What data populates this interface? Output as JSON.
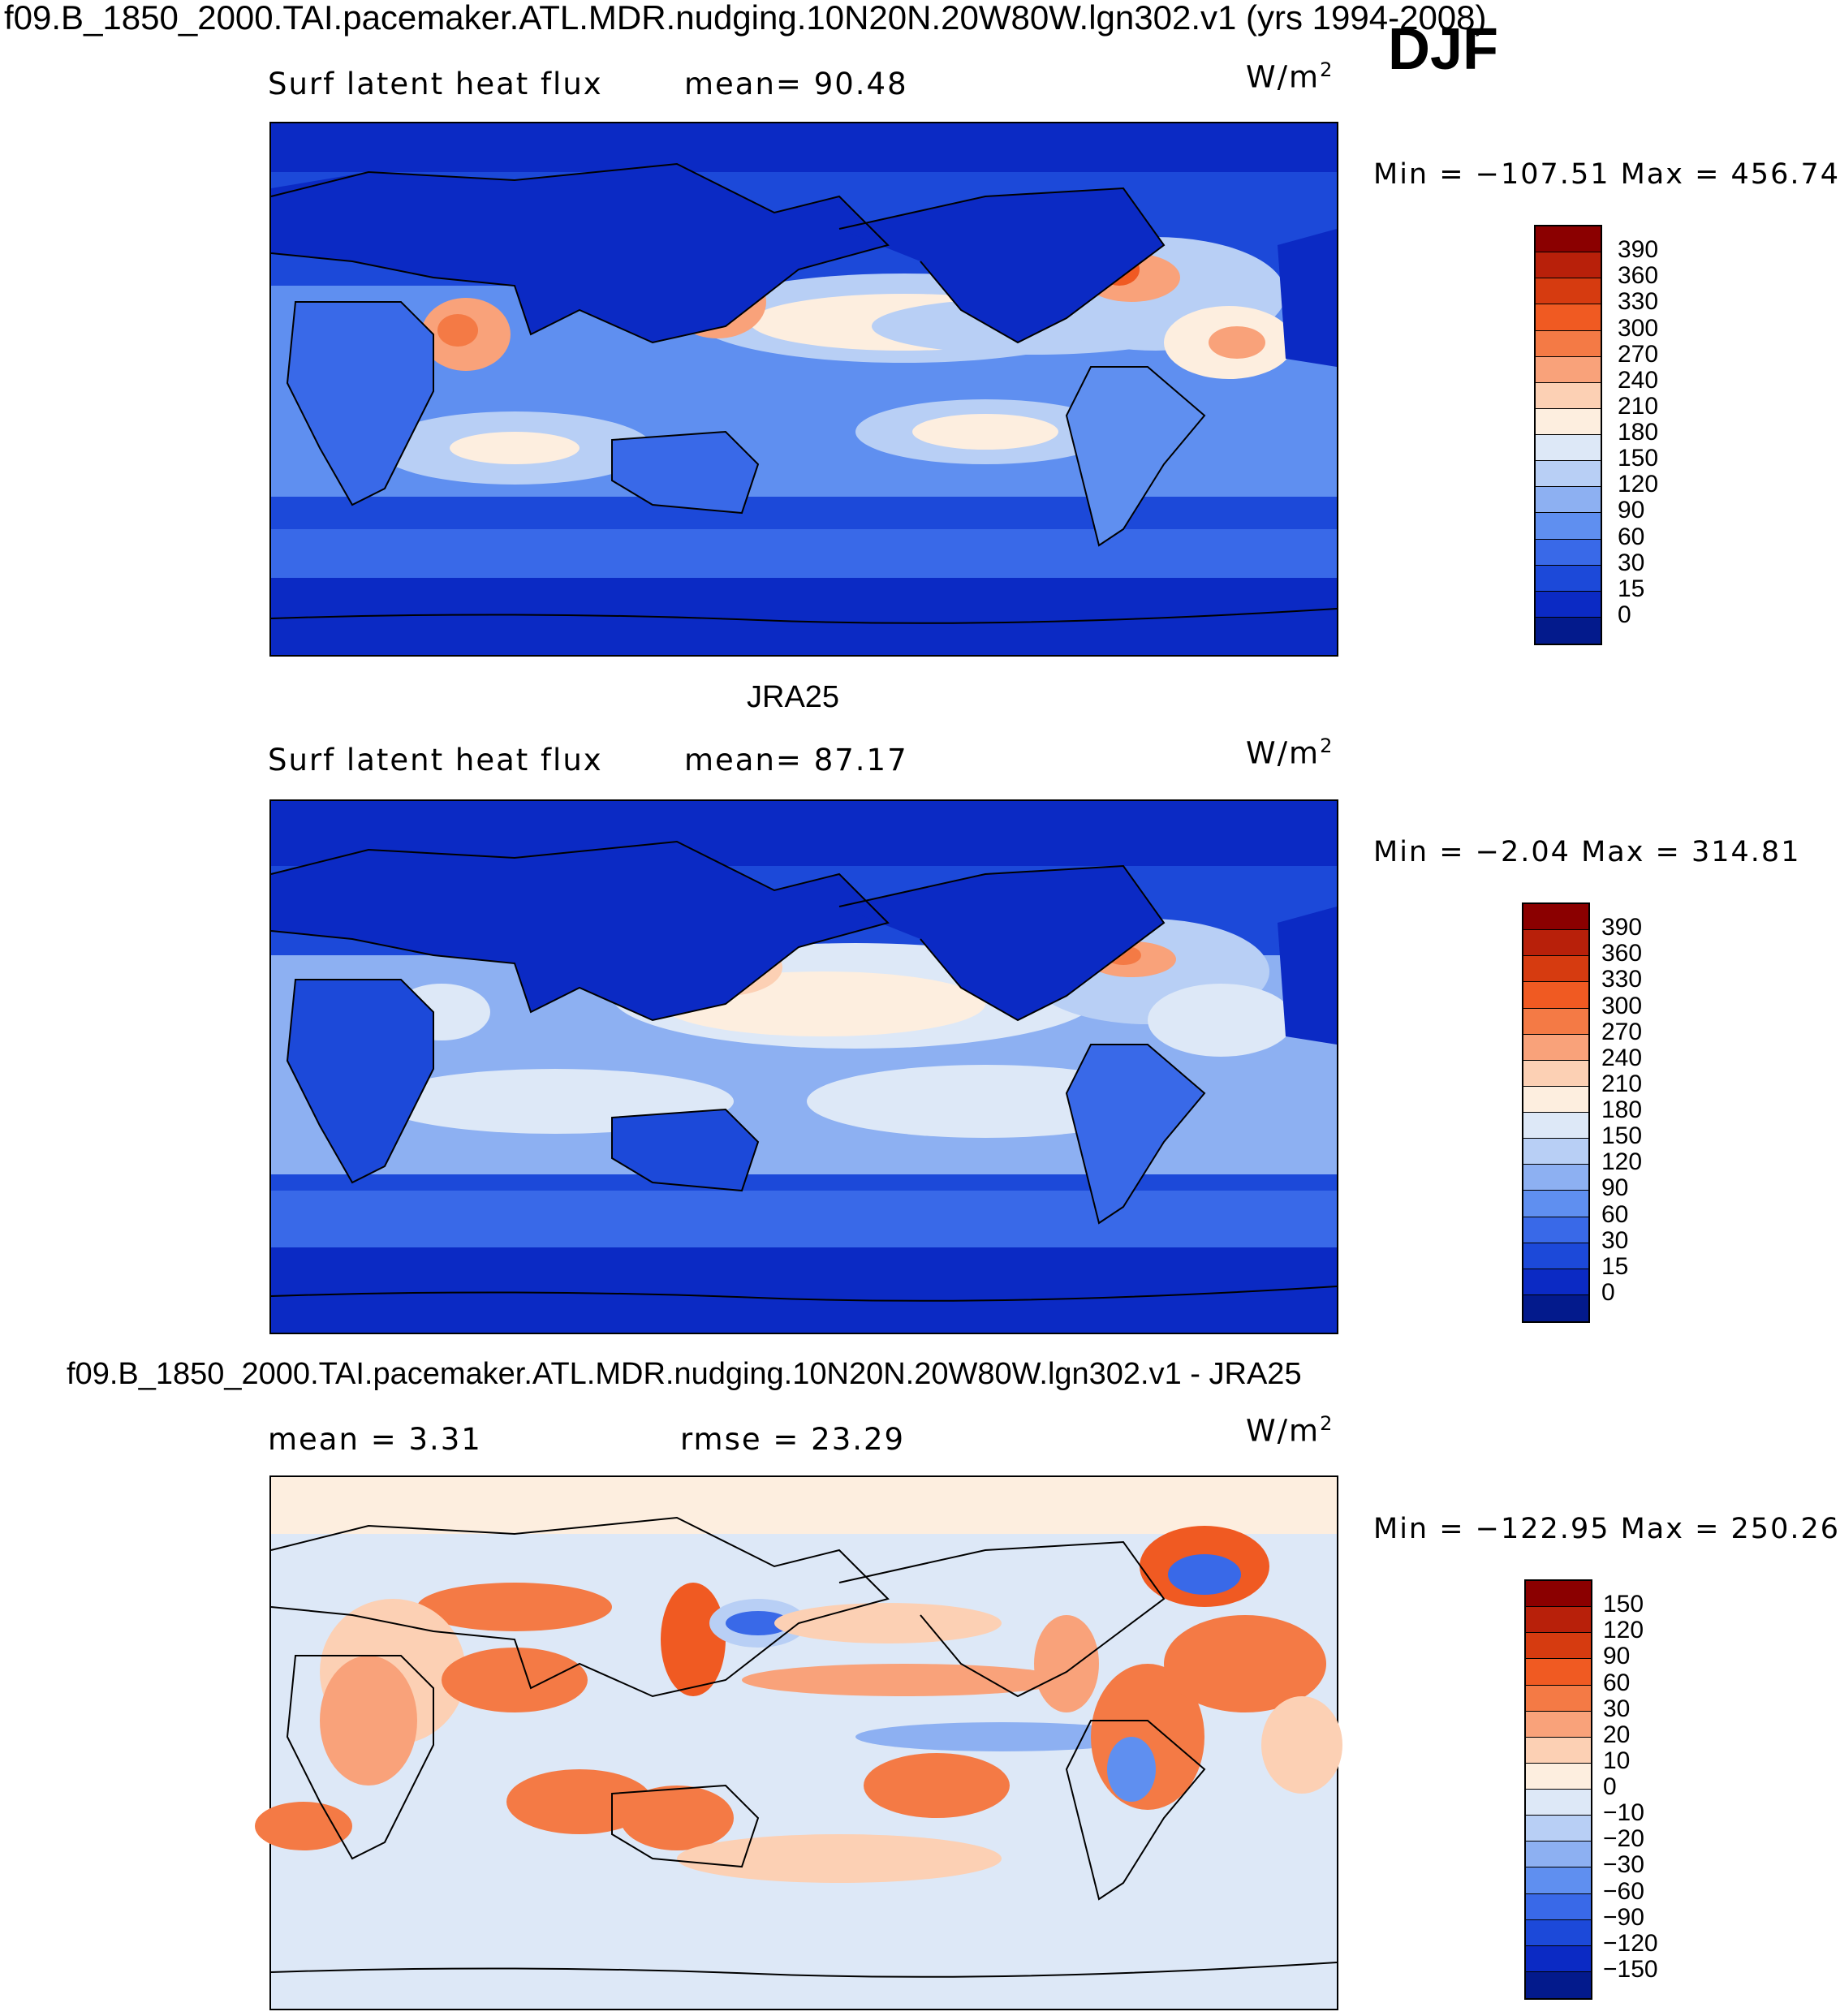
{
  "header": {
    "title": "f09.B_1850_2000.TAI.pacemaker.ATL.MDR.nudging.10N20N.20W80W.lgn302.v1 (yrs 1994-2008)",
    "season": "DJF"
  },
  "panels": [
    {
      "subtitle": "",
      "variable": "Surf latent heat flux",
      "stat1": "mean=   90.48",
      "stat2": "",
      "units": "W/m",
      "units_sup": "2",
      "minmax": "Min = −107.51  Max = 456.74",
      "colorbar": {
        "labels": [
          "390",
          "360",
          "330",
          "300",
          "270",
          "240",
          "210",
          "180",
          "150",
          "120",
          "90",
          "60",
          "30",
          "15",
          "0"
        ],
        "colors": [
          "#8b0000",
          "#b8200a",
          "#d63b10",
          "#f05a22",
          "#f47a45",
          "#f9a27a",
          "#fcd0b4",
          "#fdeedf",
          "#dde8f7",
          "#b8cff5",
          "#8db0f2",
          "#5f8ff0",
          "#3969e8",
          "#1c49d9",
          "#0b2ac4",
          "#031a8c"
        ]
      }
    },
    {
      "subtitle": "JRA25",
      "variable": "Surf latent heat flux",
      "stat1": "mean=   87.17",
      "stat2": "",
      "units": "W/m",
      "units_sup": "2",
      "minmax": "Min =   −2.04  Max = 314.81",
      "colorbar": {
        "labels": [
          "390",
          "360",
          "330",
          "300",
          "270",
          "240",
          "210",
          "180",
          "150",
          "120",
          "90",
          "60",
          "30",
          "15",
          "0"
        ],
        "colors": [
          "#8b0000",
          "#b8200a",
          "#d63b10",
          "#f05a22",
          "#f47a45",
          "#f9a27a",
          "#fcd0b4",
          "#fdeedf",
          "#dde8f7",
          "#b8cff5",
          "#8db0f2",
          "#5f8ff0",
          "#3969e8",
          "#1c49d9",
          "#0b2ac4",
          "#031a8c"
        ]
      }
    },
    {
      "subtitle": "f09.B_1850_2000.TAI.pacemaker.ATL.MDR.nudging.10N20N.20W80W.lgn302.v1 - JRA25",
      "variable": "mean =    3.31",
      "stat1": "rmse =   23.29",
      "stat2": "",
      "units": "W/m",
      "units_sup": "2",
      "minmax": "Min = −122.95  Max = 250.26",
      "colorbar": {
        "labels": [
          "150",
          "120",
          "90",
          "60",
          "30",
          "20",
          "10",
          "0",
          "−10",
          "−20",
          "−30",
          "−60",
          "−90",
          "−120",
          "−150"
        ],
        "colors": [
          "#8b0000",
          "#b8200a",
          "#d63b10",
          "#f05a22",
          "#f47a45",
          "#f9a27a",
          "#fcd0b4",
          "#fdeedf",
          "#dde8f7",
          "#b8cff5",
          "#8db0f2",
          "#5f8ff0",
          "#3969e8",
          "#1c49d9",
          "#0b2ac4",
          "#031a8c"
        ]
      }
    }
  ],
  "palette": {
    "deep_blue": "#0b2ac4",
    "mid_blue": "#3969e8",
    "light_blue": "#8db0f2",
    "pale_blue": "#dde8f7",
    "cream": "#fdeedf",
    "salmon": "#f9a27a",
    "orange": "#f05a22",
    "dark_red": "#8b0000"
  }
}
